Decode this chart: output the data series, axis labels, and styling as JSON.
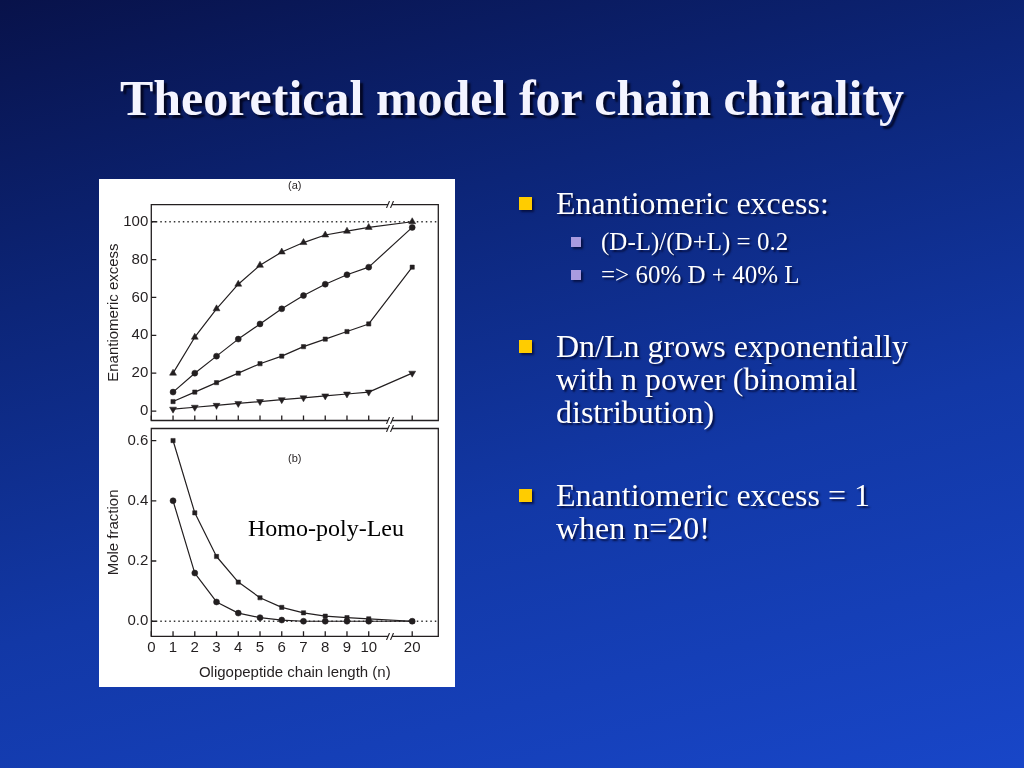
{
  "chart_data": [
    {
      "type": "line",
      "title": "Theoretical model for chain chirality",
      "subtitle": "(a)",
      "ylabel": "Enantiomeric excess",
      "categories": [
        "0",
        "1",
        "2",
        "3",
        "4",
        "5",
        "6",
        "7",
        "8",
        "9",
        "10",
        null,
        "20"
      ],
      "series": [
        {
          "color": "#231f20",
          "marker": "triangle",
          "values": [
            null,
            20,
            39,
            54,
            67,
            77,
            84,
            89,
            93,
            95,
            97,
            null,
            100
          ]
        },
        {
          "color": "#231f20",
          "marker": "circle",
          "values": [
            null,
            10,
            20,
            29,
            38,
            46,
            54,
            61,
            67,
            72,
            76,
            null,
            97
          ]
        },
        {
          "color": "#231f20",
          "marker": "square",
          "values": [
            null,
            5,
            10,
            15,
            20,
            25,
            29,
            34,
            38,
            42,
            46,
            null,
            76
          ]
        },
        {
          "color": "#231f20",
          "marker": "triangle-down",
          "values": [
            null,
            1,
            2,
            3,
            4,
            5,
            6,
            7,
            8,
            9,
            10,
            null,
            20
          ]
        }
      ],
      "ylim": [
        -5,
        109
      ],
      "yticks": [
        0,
        20,
        40,
        60,
        80,
        100
      ],
      "ref_lines": [
        {
          "axis": "y",
          "value": 100,
          "color": "#333333",
          "line_style": "dotted"
        }
      ],
      "grid": false,
      "tick_labels": "y",
      "annotations": [
        "Enantiomeric excess:",
        "(D-L)/(D+L) = 0.2",
        "=> 60% D + 40% L",
        "Dn/Ln grows exponentially with n power (binomial distribution)",
        "Enantiomeric excess = 1 when n=20!"
      ]
    },
    {
      "type": "line",
      "title": "(b)",
      "xlabel": "Oligopeptide chain length (n)",
      "ylabel": "Mole fraction",
      "categories": [
        "0",
        "1",
        "2",
        "3",
        "4",
        "5",
        "6",
        "7",
        "8",
        "9",
        "10",
        null,
        "20"
      ],
      "series": [
        {
          "color": "#231f20",
          "marker": "square",
          "values": [
            null,
            0.6,
            0.36,
            0.215,
            0.13,
            0.078,
            0.046,
            0.028,
            0.017,
            0.012,
            0.008,
            null,
            0
          ]
        },
        {
          "color": "#231f20",
          "marker": "circle",
          "values": [
            null,
            0.4,
            0.16,
            0.064,
            0.027,
            0.012,
            0.004,
            0,
            0,
            0,
            0,
            null,
            0
          ]
        }
      ],
      "ylim": [
        -0.05,
        0.64
      ],
      "yticks": [
        {
          "value": 0,
          "label": "0.0"
        },
        0.2,
        0.4,
        0.6
      ],
      "ref_lines": [
        {
          "axis": "y",
          "value": 0,
          "color": "#333333",
          "line_style": "dotted"
        }
      ],
      "grid": false,
      "annotations": [
        "Homo-poly-Leu"
      ]
    }
  ]
}
